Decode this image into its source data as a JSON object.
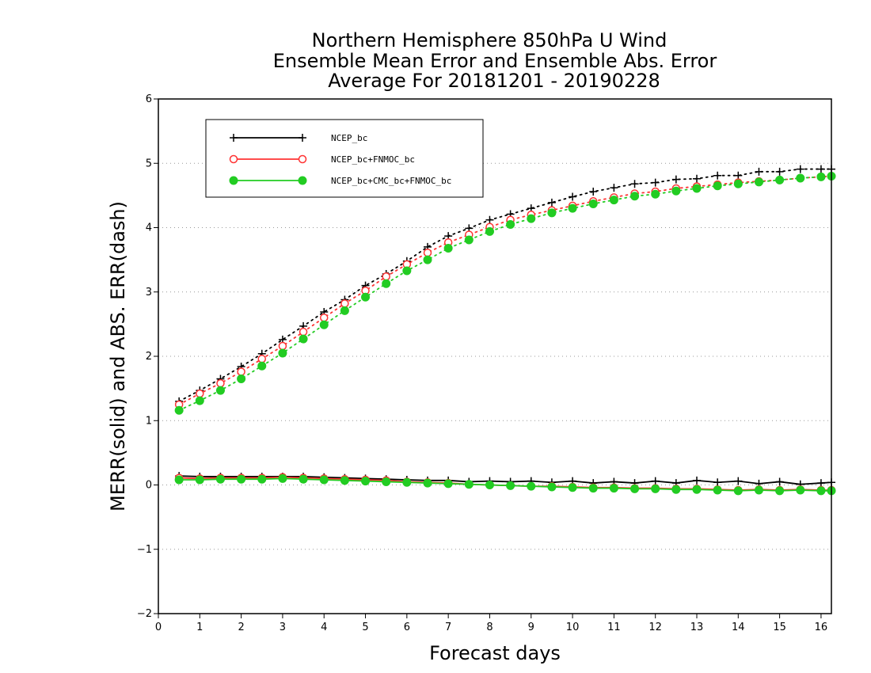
{
  "chart_data": {
    "type": "line",
    "title": [
      "Northern Hemisphere 850hPa U Wind",
      "Ensemble Mean Error and Ensemble Abs. Error",
      "Average For 20181201 - 20190228"
    ],
    "xlabel": "Forecast days",
    "ylabel": "MERR(solid) and ABS. ERR(dash)",
    "xlim": [
      0,
      16.25
    ],
    "ylim": [
      -2,
      6
    ],
    "xticks": [
      0,
      1,
      2,
      3,
      4,
      5,
      6,
      7,
      8,
      9,
      10,
      11,
      12,
      13,
      14,
      15,
      16
    ],
    "yticks": [
      -2,
      -1,
      0,
      1,
      2,
      3,
      4,
      5,
      6
    ],
    "ytick_labels": [
      "−2",
      "−1",
      "0",
      "1",
      "2",
      "3",
      "4",
      "5",
      "6"
    ],
    "grid": "horizontal dotted",
    "legend": "top-left",
    "x": [
      0.5,
      1,
      1.5,
      2,
      2.5,
      3,
      3.5,
      4,
      4.5,
      5,
      5.5,
      6,
      6.5,
      7,
      7.5,
      8,
      8.5,
      9,
      9.5,
      10,
      10.5,
      11,
      11.5,
      12,
      12.5,
      13,
      13.5,
      14,
      14.5,
      15,
      15.5,
      16,
      16.25
    ],
    "series": [
      {
        "name": "NCEP_bc",
        "color": "#000000",
        "marker": "plus",
        "abs_err": [
          1.3,
          1.47,
          1.65,
          1.84,
          2.04,
          2.26,
          2.47,
          2.69,
          2.88,
          3.1,
          3.28,
          3.48,
          3.7,
          3.87,
          3.99,
          4.12,
          4.21,
          4.3,
          4.39,
          4.48,
          4.56,
          4.62,
          4.68,
          4.7,
          4.75,
          4.76,
          4.81,
          4.81,
          4.87,
          4.87,
          4.91,
          4.91,
          4.91
        ],
        "mean_err": [
          0.14,
          0.13,
          0.13,
          0.13,
          0.13,
          0.13,
          0.13,
          0.12,
          0.11,
          0.1,
          0.09,
          0.08,
          0.07,
          0.07,
          0.05,
          0.06,
          0.05,
          0.06,
          0.04,
          0.06,
          0.03,
          0.05,
          0.03,
          0.06,
          0.03,
          0.07,
          0.04,
          0.06,
          0.02,
          0.05,
          0.01,
          0.03,
          0.04
        ]
      },
      {
        "name": "NCEP_bc+FNMOC_bc",
        "color": "#ff3333",
        "marker": "open-circle",
        "abs_err": [
          1.25,
          1.42,
          1.58,
          1.76,
          1.96,
          2.16,
          2.38,
          2.6,
          2.82,
          3.02,
          3.24,
          3.43,
          3.61,
          3.77,
          3.89,
          4.01,
          4.12,
          4.2,
          4.27,
          4.34,
          4.41,
          4.47,
          4.53,
          4.56,
          4.61,
          4.64,
          4.67,
          4.7,
          4.72,
          4.74,
          4.77,
          4.79,
          4.8
        ],
        "mean_err": [
          0.11,
          0.1,
          0.11,
          0.11,
          0.11,
          0.12,
          0.11,
          0.1,
          0.09,
          0.08,
          0.07,
          0.05,
          0.04,
          0.03,
          0.01,
          0.0,
          -0.01,
          -0.02,
          -0.02,
          -0.03,
          -0.04,
          -0.04,
          -0.05,
          -0.05,
          -0.06,
          -0.06,
          -0.07,
          -0.08,
          -0.07,
          -0.08,
          -0.07,
          -0.08,
          -0.08
        ]
      },
      {
        "name": "NCEP_bc+CMC_bc+FNMOC_bc",
        "color": "#22cc22",
        "marker": "filled-circle",
        "abs_err": [
          1.16,
          1.31,
          1.47,
          1.65,
          1.85,
          2.05,
          2.27,
          2.49,
          2.71,
          2.92,
          3.13,
          3.33,
          3.5,
          3.68,
          3.81,
          3.94,
          4.05,
          4.14,
          4.23,
          4.3,
          4.37,
          4.43,
          4.49,
          4.52,
          4.57,
          4.61,
          4.65,
          4.68,
          4.71,
          4.74,
          4.77,
          4.79,
          4.8
        ],
        "mean_err": [
          0.08,
          0.08,
          0.09,
          0.09,
          0.09,
          0.1,
          0.09,
          0.08,
          0.07,
          0.06,
          0.05,
          0.04,
          0.03,
          0.02,
          0.01,
          0.0,
          -0.01,
          -0.02,
          -0.03,
          -0.04,
          -0.05,
          -0.05,
          -0.06,
          -0.06,
          -0.07,
          -0.07,
          -0.08,
          -0.09,
          -0.08,
          -0.09,
          -0.08,
          -0.09,
          -0.09
        ]
      }
    ]
  }
}
